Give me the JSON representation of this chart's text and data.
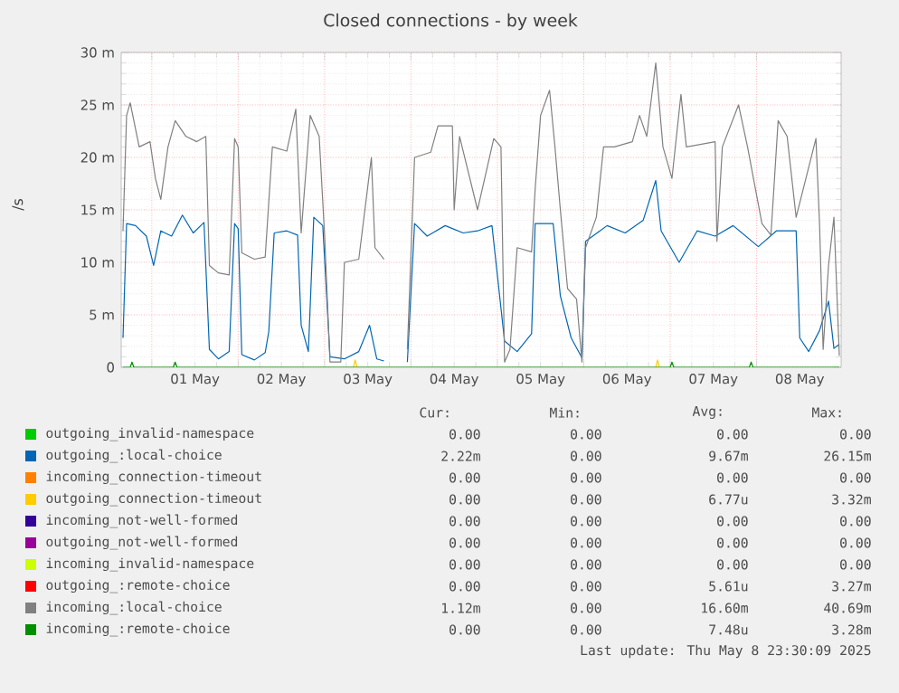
{
  "chart_data": {
    "type": "line",
    "title": "Closed connections - by week",
    "ylabel": "/s",
    "xlim": [
      "2025-04-30T15:30",
      "2025-05-08T23:30"
    ],
    "xticks": [
      {
        "value": "2025-05-01T00:00",
        "label": null
      },
      {
        "value": "2025-05-01T12:00",
        "label": "01 May"
      },
      {
        "value": "2025-05-02T00:00",
        "label": null
      },
      {
        "value": "2025-05-02T12:00",
        "label": "02 May"
      },
      {
        "value": "2025-05-03T00:00",
        "label": null
      },
      {
        "value": "2025-05-03T12:00",
        "label": "03 May"
      },
      {
        "value": "2025-05-04T00:00",
        "label": null
      },
      {
        "value": "2025-05-04T12:00",
        "label": "04 May"
      },
      {
        "value": "2025-05-05T00:00",
        "label": null
      },
      {
        "value": "2025-05-05T12:00",
        "label": "05 May"
      },
      {
        "value": "2025-05-06T00:00",
        "label": null
      },
      {
        "value": "2025-05-06T12:00",
        "label": "06 May"
      },
      {
        "value": "2025-05-07T00:00",
        "label": null
      },
      {
        "value": "2025-05-07T12:00",
        "label": "07 May"
      },
      {
        "value": "2025-05-08T00:00",
        "label": null
      },
      {
        "value": "2025-05-08T12:00",
        "label": "08 May"
      }
    ],
    "ylim": [
      0,
      30
    ],
    "yticks": [
      0,
      {
        "value": 5,
        "label": "5 m"
      },
      {
        "value": 10,
        "label": "10 m"
      },
      {
        "value": 15,
        "label": "15 m"
      },
      {
        "value": 20,
        "label": "20 m"
      },
      {
        "value": 25,
        "label": "25 m"
      },
      {
        "value": 30,
        "label": "30 m"
      }
    ],
    "grid": true,
    "legend": "bottom",
    "series": [
      {
        "name": "outgoing_invalid-namespace",
        "color": "#00cc00"
      },
      {
        "name": "outgoing_:local-choice",
        "color": "#0066b3",
        "x": [
          "2025-04-30T16:00",
          "2025-04-30T17:00",
          "2025-04-30T19:30",
          "2025-04-30T22:30",
          "2025-05-01T00:30",
          "2025-05-01T02:30",
          "2025-05-01T05:30",
          "2025-05-01T08:30",
          "2025-05-01T11:30",
          "2025-05-01T14:30",
          "2025-05-01T16:00",
          "2025-05-01T18:30",
          "2025-05-01T21:30",
          "2025-05-01T23:00",
          "2025-05-02T00:00",
          "2025-05-02T01:00",
          "2025-05-02T04:30",
          "2025-05-02T07:30",
          "2025-05-02T08:30",
          "2025-05-02T10:00",
          "2025-05-02T13:30",
          "2025-05-02T16:30",
          "2025-05-02T17:30",
          "2025-05-02T19:30",
          "2025-05-02T21:00",
          "2025-05-02T23:30",
          "2025-05-03T01:30",
          "2025-05-03T05:30",
          "2025-05-03T09:30",
          "2025-05-03T12:30",
          "2025-05-03T14:30",
          "2025-05-03T16:30",
          "2025-05-03T19:30",
          "2025-05-03T23:00",
          "2025-05-04T01:00",
          "2025-05-04T04:30",
          "2025-05-04T09:30",
          "2025-05-04T14:30",
          "2025-05-04T18:30",
          "2025-05-04T22:30",
          "2025-05-05T02:00",
          "2025-05-05T05:30",
          "2025-05-05T09:30",
          "2025-05-05T10:30",
          "2025-05-05T15:30",
          "2025-05-05T17:30",
          "2025-05-05T20:30",
          "2025-05-05T23:30",
          "2025-05-06T00:30",
          "2025-05-06T06:30",
          "2025-05-06T11:30",
          "2025-05-06T16:30",
          "2025-05-06T20:00",
          "2025-05-06T21:30",
          "2025-05-07T02:30",
          "2025-05-07T07:30",
          "2025-05-07T12:30",
          "2025-05-07T17:30",
          "2025-05-08T00:30",
          "2025-05-08T05:30",
          "2025-05-08T11:00",
          "2025-05-08T12:00",
          "2025-05-08T14:30",
          "2025-05-08T17:30",
          "2025-05-08T20:00",
          "2025-05-08T21:30",
          "2025-05-08T23:00"
        ],
        "values": [
          2.8,
          13.7,
          13.5,
          12.5,
          9.7,
          13,
          12.5,
          14.5,
          12.8,
          13.8,
          1.7,
          0.8,
          1.5,
          13.7,
          13.2,
          1.2,
          0.7,
          1.4,
          3.4,
          12.8,
          13,
          12.6,
          4,
          1.5,
          14.3,
          13.5,
          1,
          0.8,
          1.5,
          4,
          0.8,
          0.6,
          null,
          0.5,
          13.7,
          12.5,
          13.5,
          12.8,
          13,
          13.5,
          2.5,
          1.5,
          3.2,
          13.7,
          13.7,
          6.8,
          2.8,
          0.9,
          12,
          13.5,
          12.8,
          14,
          17.8,
          13,
          10,
          13,
          12.5,
          13.5,
          11.5,
          13,
          13,
          2.8,
          1.5,
          3.5,
          6.3,
          1.8,
          2.2
        ]
      },
      {
        "name": "incoming_connection-timeout",
        "color": "#ff8000"
      },
      {
        "name": "outgoing_connection-timeout",
        "color": "#ffcc00",
        "x": [
          "2025-05-03T08:00",
          "2025-05-03T08:30",
          "2025-05-03T09:00",
          "2025-05-05T00:00",
          "2025-05-06T20:00",
          "2025-05-06T20:30",
          "2025-05-06T21:00"
        ],
        "values": [
          0,
          0.7,
          0,
          null,
          0,
          0.7,
          0
        ]
      },
      {
        "name": "incoming_not-well-formed",
        "color": "#330099"
      },
      {
        "name": "outgoing_not-well-formed",
        "color": "#990099"
      },
      {
        "name": "incoming_invalid-namespace",
        "color": "#ccff00"
      },
      {
        "name": "outgoing_:remote-choice",
        "color": "#ff0000"
      },
      {
        "name": "incoming_:local-choice",
        "color": "#808080",
        "x": [
          "2025-04-30T16:00",
          "2025-04-30T17:00",
          "2025-04-30T18:00",
          "2025-04-30T20:30",
          "2025-04-30T23:30",
          "2025-05-01T01:00",
          "2025-05-01T02:30",
          "2025-05-01T04:30",
          "2025-05-01T06:30",
          "2025-05-01T09:30",
          "2025-05-01T12:30",
          "2025-05-01T15:00",
          "2025-05-01T16:00",
          "2025-05-01T18:30",
          "2025-05-01T21:30",
          "2025-05-01T23:00",
          "2025-05-02T00:00",
          "2025-05-02T01:00",
          "2025-05-02T04:30",
          "2025-05-02T07:30",
          "2025-05-02T09:30",
          "2025-05-02T13:30",
          "2025-05-02T16:00",
          "2025-05-02T17:30",
          "2025-05-02T20:00",
          "2025-05-02T22:30",
          "2025-05-03T00:00",
          "2025-05-03T01:30",
          "2025-05-03T04:30",
          "2025-05-03T05:30",
          "2025-05-03T09:30",
          "2025-05-03T13:00",
          "2025-05-03T14:00",
          "2025-05-03T16:30",
          "2025-05-03T19:30",
          "2025-05-03T23:00",
          "2025-05-04T01:00",
          "2025-05-04T05:30",
          "2025-05-04T07:30",
          "2025-05-04T11:30",
          "2025-05-04T12:00",
          "2025-05-04T13:30",
          "2025-05-04T18:30",
          "2025-05-04T23:00",
          "2025-05-05T01:00",
          "2025-05-05T02:00",
          "2025-05-05T03:30",
          "2025-05-05T05:30",
          "2025-05-05T09:30",
          "2025-05-05T10:30",
          "2025-05-05T12:00",
          "2025-05-05T14:30",
          "2025-05-05T16:00",
          "2025-05-05T17:30",
          "2025-05-05T19:30",
          "2025-05-05T22:00",
          "2025-05-05T23:30",
          "2025-05-06T00:30",
          "2025-05-06T03:30",
          "2025-05-06T05:30",
          "2025-05-06T08:30",
          "2025-05-06T13:30",
          "2025-05-06T15:30",
          "2025-05-06T17:30",
          "2025-05-06T20:00",
          "2025-05-06T22:00",
          "2025-05-07T00:30",
          "2025-05-07T03:00",
          "2025-05-07T04:30",
          "2025-05-07T12:30",
          "2025-05-07T13:00",
          "2025-05-07T14:30",
          "2025-05-07T19:00",
          "2025-05-07T21:30",
          "2025-05-08T01:30",
          "2025-05-08T04:00",
          "2025-05-08T06:00",
          "2025-05-08T08:30",
          "2025-05-08T11:00",
          "2025-05-08T16:30",
          "2025-05-08T17:30",
          "2025-05-08T18:30",
          "2025-05-08T20:00",
          "2025-05-08T21:30",
          "2025-05-08T23:00"
        ],
        "values": [
          13,
          24,
          25.2,
          21,
          21.5,
          18,
          16,
          21,
          23.5,
          22,
          21.5,
          22,
          9.7,
          9,
          8.8,
          21.8,
          21,
          10.9,
          10.3,
          10.5,
          21,
          20.6,
          24.6,
          12.8,
          24,
          22,
          12.6,
          0.5,
          0.5,
          10,
          10.3,
          20,
          11.4,
          10.3,
          null,
          1.7,
          20,
          20.5,
          23,
          23,
          15,
          22,
          15,
          21.8,
          21,
          0.5,
          1.7,
          11.4,
          11,
          17,
          24,
          26.4,
          21,
          15,
          7.5,
          6.5,
          0.5,
          11.4,
          14.3,
          21,
          21,
          21.5,
          24,
          22,
          29,
          21,
          18,
          26,
          21,
          21.5,
          12,
          21,
          25,
          21,
          13.7,
          12.6,
          23.5,
          22,
          14.3,
          21.8,
          13.7,
          1.7,
          9.7,
          14.3,
          1.1
        ]
      },
      {
        "name": "incoming_:remote-choice",
        "color": "#008f00",
        "x": [
          "2025-04-30T16:00",
          "2025-04-30T18:00",
          "2025-04-30T18:30",
          "2025-04-30T19:00",
          "2025-05-01T06:00",
          "2025-05-01T06:30",
          "2025-05-01T07:00",
          "2025-05-07T00:00",
          "2025-05-07T00:30",
          "2025-05-07T01:00",
          "2025-05-07T22:00",
          "2025-05-07T22:30",
          "2025-05-07T23:00",
          "2025-05-08T23:00"
        ],
        "values": [
          0,
          0,
          0.5,
          0,
          0,
          0.5,
          0,
          0,
          0.5,
          0,
          0,
          0.5,
          0,
          0
        ]
      }
    ],
    "annotations": [
      "Cur:",
      "Min:",
      "Avg:",
      "Max:",
      "0.00",
      "0.00",
      "0.00",
      "0.00",
      "2.22m",
      "0.00",
      "9.67m",
      "26.15m",
      "0.00",
      "0.00",
      "0.00",
      "0.00",
      "0.00",
      "0.00",
      "6.77u",
      "3.32m",
      "0.00",
      "0.00",
      "0.00",
      "0.00",
      "0.00",
      "0.00",
      "0.00",
      "0.00",
      "0.00",
      "0.00",
      "0.00",
      "0.00",
      "0.00",
      "0.00",
      "5.61u",
      "3.27m",
      "1.12m",
      "0.00",
      "16.60m",
      "40.69m",
      "0.00",
      "0.00",
      "7.48u",
      "3.28m",
      "Last update: Thu May  8 23:30:09 2025"
    ]
  }
}
